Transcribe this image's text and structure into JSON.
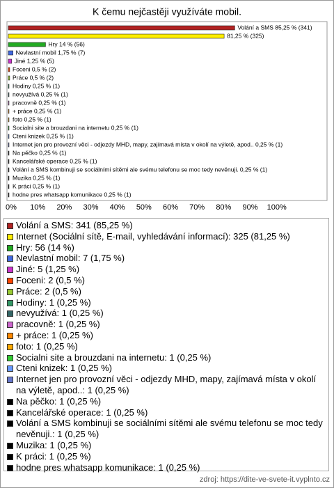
{
  "chart_data": {
    "type": "hbar",
    "title": "K čemu nejčastěji využíváte mobil.",
    "values": [
      85.25,
      81.25,
      14,
      1.75,
      1.25,
      0.5,
      0.5,
      0.25,
      0.25,
      0.25,
      0.25,
      0.25,
      0.25,
      0.25,
      0.25,
      0.25,
      0.25,
      0.25,
      0.25,
      0.25,
      0.25
    ],
    "value_labels": [
      "Volání a SMS 85,25 % (341)",
      "81,25 % (325)",
      "Hry 14 % (56)",
      "Nevlastní mobil 1,75 % (7)",
      "Jiné 1,25 % (5)",
      "Foceni 0,5 % (2)",
      "Práce 0,5 % (2)",
      "Hodiny 0,25 % (1)",
      "nevyužívá 0,25 % (1)",
      "pracovně 0,25 % (1)",
      "+ práce 0,25 % (1)",
      "foto 0,25 % (1)",
      "Socialni site a brouzdani na internetu 0,25 % (1)",
      "Cteni knizek 0,25 % (1)",
      "Internet jen pro provozní věci - odjezdy MHD, mapy, zajímavá místa v okolí na výletě, apod.. 0,25 % (1)",
      "Na pěčko 0,25 % (1)",
      "Kancelářské operace 0,25 % (1)",
      "Volání a SMS kombinuji se sociálními sítěmi ale svému telefonu se moc tedy nevěnuji. 0,25 % (1)",
      "Muzika 0,25 % (1)",
      "K práci 0,25 % (1)",
      "hodne pres whatsapp komunikace 0,25 % (1)"
    ],
    "legend_labels": [
      "Volání a SMS: 341 (85,25 %)",
      "Internet (Sociální sítě, E-mail, vyhledávání informací): 325 (81,25 %)",
      "Hry: 56 (14 %)",
      "Nevlastní mobil: 7 (1,75 %)",
      "Jiné: 5 (1,25 %)",
      "Foceni: 2 (0,5 %)",
      "Práce: 2 (0,5 %)",
      "Hodiny: 1 (0,25 %)",
      "nevyužívá: 1 (0,25 %)",
      "pracovně: 1 (0,25 %)",
      "+ práce: 1 (0,25 %)",
      "foto: 1 (0,25 %)",
      "Socialni site a brouzdani na internetu: 1 (0,25 %)",
      "Cteni knizek: 1 (0,25 %)",
      "Internet jen pro provozní věci - odjezdy MHD, mapy, zajímavá místa v okolí na výletě, apod..: 1 (0,25 %)",
      "Na pěčko: 1 (0,25 %)",
      "Kancelářské operace: 1 (0,25 %)",
      "Volání a SMS kombinuji se sociálními sítěmi ale svému telefonu se moc tedy nevěnuji.: 1 (0,25 %)",
      "Muzika: 1 (0,25 %)",
      "K práci: 1 (0,25 %)",
      "hodne pres whatsapp komunikace: 1 (0,25 %)"
    ],
    "colors": [
      "#b22222",
      "#ffee00",
      "#22aa22",
      "#4169e1",
      "#cc33cc",
      "#ff4500",
      "#99cc33",
      "#339966",
      "#336666",
      "#cc66cc",
      "#ff8800",
      "#ffaa00",
      "#33cc33",
      "#6699ff",
      "#6677cc",
      "#000000",
      "#000000",
      "#000000",
      "#000000",
      "#000000",
      "#000000"
    ],
    "xlim": [
      0,
      120
    ],
    "xticks": [
      {
        "value": 0,
        "label": "0%"
      },
      {
        "value": 10,
        "label": "10%"
      },
      {
        "value": 20,
        "label": "20%"
      },
      {
        "value": 30,
        "label": "30%"
      },
      {
        "value": 40,
        "label": "40%"
      },
      {
        "value": 50,
        "label": "50%"
      },
      {
        "value": 60,
        "label": "60%"
      },
      {
        "value": 70,
        "label": "70%"
      },
      {
        "value": 80,
        "label": "80%"
      },
      {
        "value": 90,
        "label": "90%"
      },
      {
        "value": 100,
        "label": "100%"
      }
    ],
    "source": "zdroj: https://dite-ve-svete-it.vyplnto.cz"
  }
}
